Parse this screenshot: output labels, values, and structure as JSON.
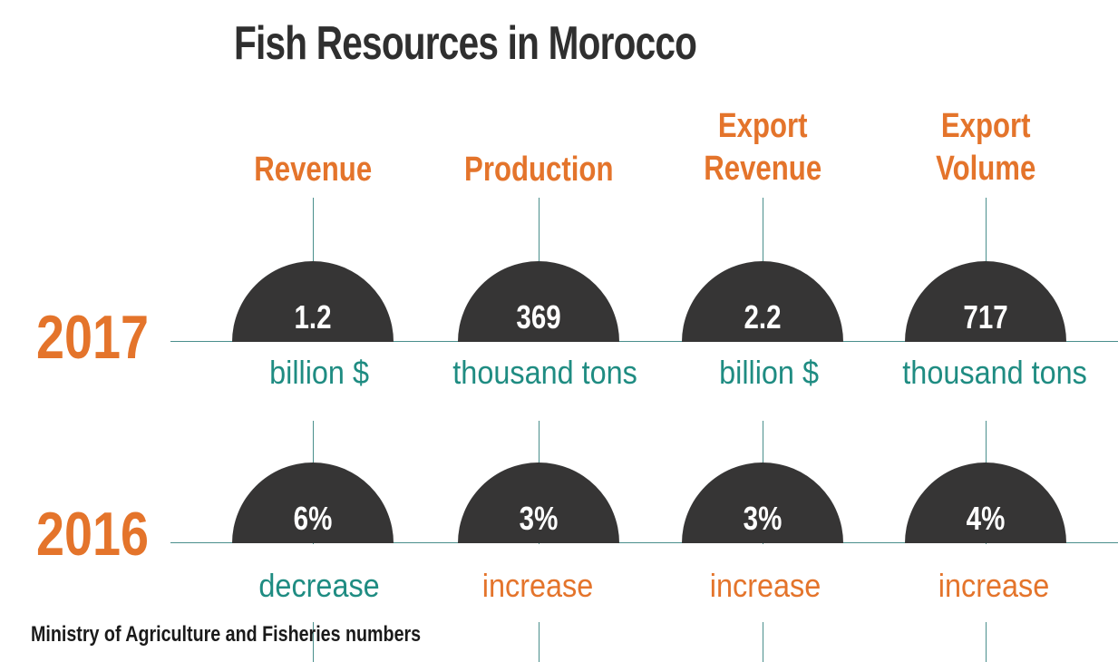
{
  "chart_data": {
    "type": "table",
    "title": "Fish Resources in Morocco",
    "source": "Ministry of Agriculture and Fisheries numbers",
    "columns": [
      {
        "header": [
          "Revenue"
        ],
        "value_2017": "1.2",
        "unit_2017": "billion $",
        "change_2016": "6%",
        "change_word": "decrease"
      },
      {
        "header": [
          "Production"
        ],
        "value_2017": "369",
        "unit_2017": "thousand tons",
        "change_2016": "3%",
        "change_word": "increase"
      },
      {
        "header": [
          "Export",
          "Revenue"
        ],
        "value_2017": "2.2",
        "unit_2017": "billion $",
        "change_2016": "3%",
        "change_word": "increase"
      },
      {
        "header": [
          "Export",
          "Volume"
        ],
        "value_2017": "717",
        "unit_2017": "thousand tons",
        "change_2016": "4%",
        "change_word": "increase"
      }
    ],
    "rows": [
      {
        "year": "2017"
      },
      {
        "year": "2016"
      }
    ]
  },
  "colors": {
    "accent_orange": "#e4742b",
    "teal": "#1f8c82",
    "dome": "#363535",
    "title": "#2f2f2f",
    "line": "#4a8f8c"
  }
}
